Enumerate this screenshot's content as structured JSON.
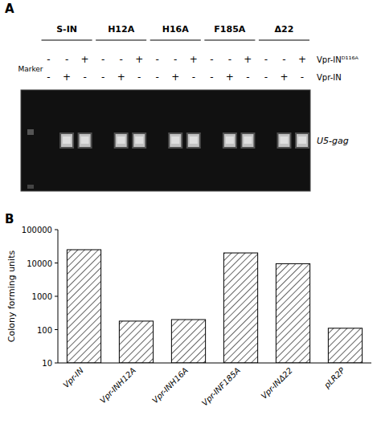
{
  "chart_data": [
    {
      "type": "gel",
      "title": "A",
      "groups": [
        "S-IN",
        "H12A",
        "H16A",
        "F185A",
        "Δ22"
      ],
      "series": [
        {
          "name": "Vpr-INᴰ¹¹⁶ᴬ",
          "values": [
            "-",
            "-",
            "+",
            "-",
            "-",
            "+",
            "-",
            "-",
            "+",
            "-",
            "-",
            "+",
            "-",
            "-",
            "+"
          ]
        },
        {
          "name": "Vpr-IN",
          "values": [
            "-",
            "+",
            "-",
            "-",
            "+",
            "-",
            "-",
            "+",
            "-",
            "-",
            "+",
            "-",
            "-",
            "+",
            "-"
          ]
        },
        {
          "name": "U5-gag",
          "values": [
            false,
            true,
            true,
            false,
            true,
            true,
            false,
            true,
            true,
            false,
            true,
            true,
            false,
            true,
            true
          ]
        }
      ],
      "annotations": [
        "Marker"
      ]
    },
    {
      "type": "bar",
      "title": "B",
      "categories": [
        "Vpr-IN",
        "Vpr-INH12A",
        "Vpr-INH16A",
        "Vpr-INF185A",
        "Vpr-INΔ22",
        "pLR2P"
      ],
      "values": [
        25000,
        180,
        200,
        20000,
        9500,
        110
      ],
      "color": "#ffffff",
      "y_label": "Colony forming units",
      "log": "y",
      "ylim": [
        10,
        100000
      ],
      "yticks": [
        10,
        100,
        1000,
        10000,
        100000
      ],
      "grid": false
    }
  ]
}
